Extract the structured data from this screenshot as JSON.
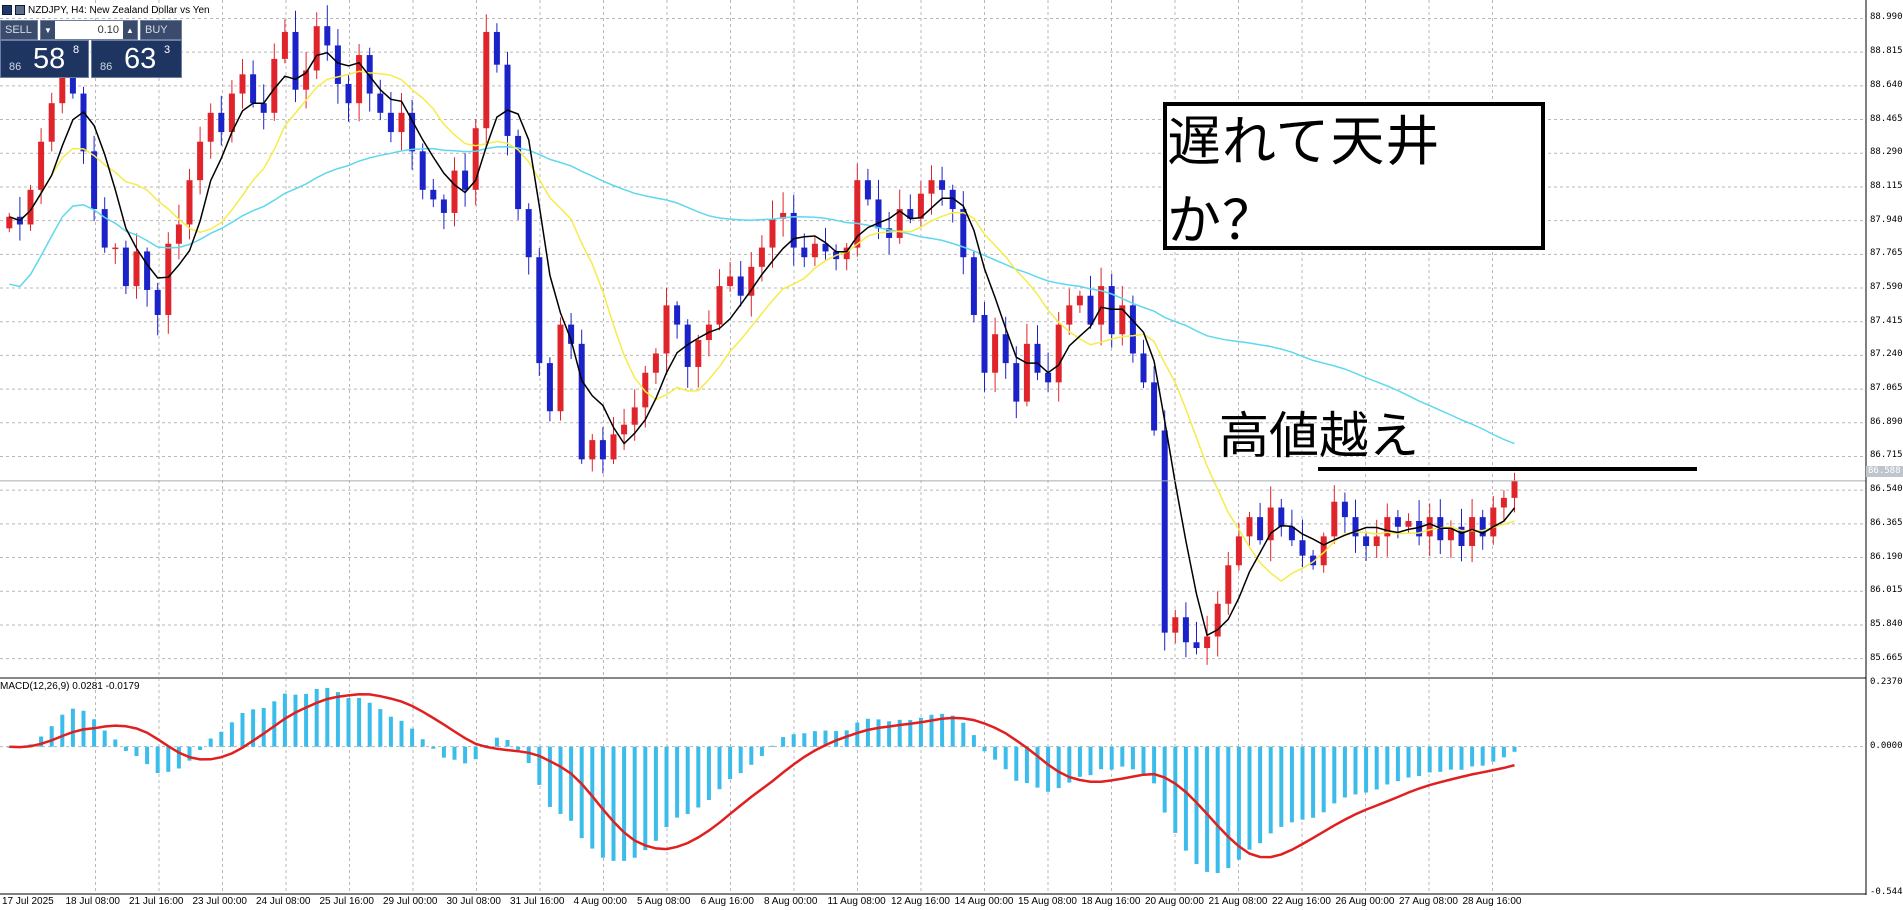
{
  "window": {
    "title": "NZDJPY, H4:  New Zealand Dollar vs Yen"
  },
  "trade_panel": {
    "sell_label": "SELL",
    "buy_label": "BUY",
    "lot_value": "0.10",
    "sell_price_small": "86",
    "sell_price_big": "58",
    "sell_price_sup": "8",
    "buy_price_small": "86",
    "buy_price_big": "63",
    "buy_price_sup": "3"
  },
  "annotations": {
    "box_text": "遅れて天井か？",
    "high_text": "高値越え"
  },
  "macd": {
    "label": "MACD(12,26,9) 0.0281 -0.0179",
    "axis_labels": [
      "0.2370",
      "0.0000",
      "-0.5445"
    ]
  },
  "price_axis": {
    "labels": [
      "88.990",
      "88.815",
      "88.640",
      "88.465",
      "88.290",
      "88.115",
      "87.940",
      "87.765",
      "87.590",
      "87.415",
      "87.240",
      "87.065",
      "86.890",
      "86.715",
      "86.540",
      "86.365",
      "86.190",
      "86.015",
      "85.840",
      "85.665"
    ],
    "current_price": "86.588"
  },
  "time_axis": {
    "labels": [
      "17 Jul 2025",
      "18 Jul 08:00",
      "21 Jul 16:00",
      "23 Jul 00:00",
      "24 Jul 08:00",
      "25 Jul 16:00",
      "29 Jul 00:00",
      "30 Jul 08:00",
      "31 Jul 16:00",
      "4 Aug 00:00",
      "5 Aug 08:00",
      "6 Aug 16:00",
      "8 Aug 00:00",
      "11 Aug 08:00",
      "12 Aug 16:00",
      "14 Aug 00:00",
      "15 Aug 08:00",
      "18 Aug 16:00",
      "20 Aug 00:00",
      "21 Aug 08:00",
      "22 Aug 16:00",
      "26 Aug 00:00",
      "27 Aug 08:00",
      "28 Aug 16:00"
    ]
  },
  "colors": {
    "bull": "#e0242b",
    "bear": "#1b22c8",
    "ma_fast": "#000000",
    "ma_mid": "#f5ec4a",
    "ma_slow": "#5fd8ee",
    "macd_hist": "#3cbcea",
    "macd_signal": "#e01f1f",
    "grid": "#b8b8b8"
  },
  "chart_data": {
    "type": "candlestick",
    "symbol": "NZDJPY",
    "timeframe": "H4",
    "ylim": [
      85.58,
      89.06
    ],
    "close": [
      87.96,
      87.92,
      88.1,
      88.35,
      88.55,
      88.72,
      88.6,
      88.3,
      88.0,
      87.8,
      87.8,
      87.6,
      87.78,
      87.58,
      87.45,
      87.82,
      87.92,
      88.15,
      88.35,
      88.5,
      88.4,
      88.6,
      88.7,
      88.55,
      88.5,
      88.78,
      88.92,
      88.62,
      88.72,
      88.95,
      88.85,
      88.65,
      88.55,
      88.8,
      88.6,
      88.5,
      88.4,
      88.5,
      88.3,
      88.1,
      88.05,
      87.98,
      88.2,
      88.1,
      88.42,
      88.92,
      88.75,
      88.38,
      88.0,
      87.75,
      87.2,
      86.95,
      87.4,
      87.3,
      86.7,
      86.8,
      86.7,
      86.83,
      86.88,
      86.97,
      87.15,
      87.25,
      87.5,
      87.4,
      87.18,
      87.32,
      87.4,
      87.6,
      87.65,
      87.55,
      87.7,
      87.8,
      87.95,
      87.98,
      87.8,
      87.75,
      87.82,
      87.78,
      87.74,
      87.8,
      88.15,
      88.05,
      87.9,
      87.85,
      88.0,
      87.95,
      88.08,
      88.15,
      88.1,
      88.0,
      87.75,
      87.45,
      87.15,
      87.35,
      87.2,
      87.0,
      87.3,
      87.15,
      87.1,
      87.4,
      87.5,
      87.55,
      87.4,
      87.6,
      87.35,
      87.5,
      87.25,
      87.1,
      86.85,
      85.8,
      85.88,
      85.75,
      85.72,
      85.78,
      85.95,
      86.15,
      86.3,
      86.4,
      86.28,
      86.45,
      86.35,
      86.28,
      86.2,
      86.15,
      86.3,
      86.48,
      86.4,
      86.3,
      86.25,
      86.3,
      86.4,
      86.35,
      86.38,
      86.3,
      86.4,
      86.28,
      86.35,
      86.25,
      86.4,
      86.3,
      86.45,
      86.5,
      86.59
    ]
  }
}
